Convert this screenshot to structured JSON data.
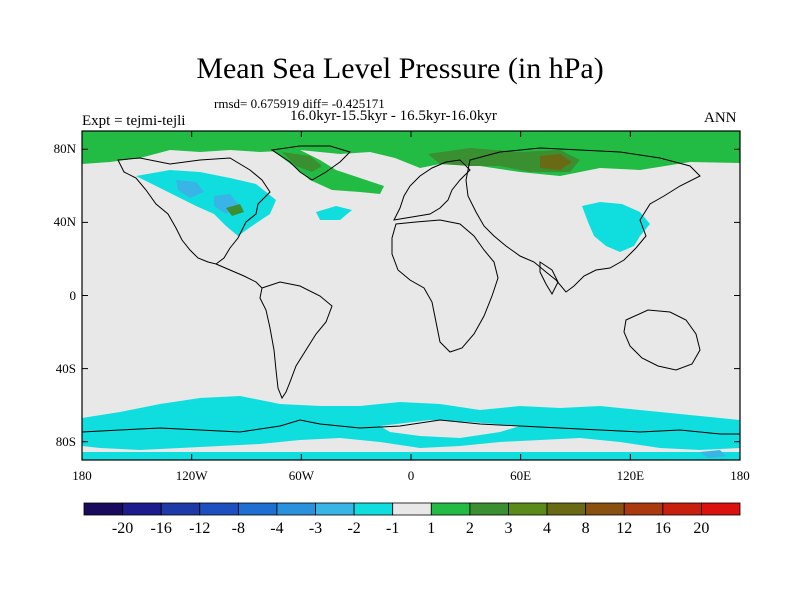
{
  "title": "Mean Sea Level Pressure (in hPa)",
  "stats": "rmsd= 0.675919 diff= -0.425171",
  "period": "16.0kyr-15.5kyr - 16.5kyr-16.0kyr",
  "experiment": "Expt = tejmi-tejli",
  "season": "ANN",
  "map": {
    "x_range": [
      -180,
      180
    ],
    "y_range": [
      -90,
      90
    ],
    "lat_ticks": [
      {
        "value": 80,
        "label": "80N"
      },
      {
        "value": 40,
        "label": "40N"
      },
      {
        "value": 0,
        "label": "0"
      },
      {
        "value": -40,
        "label": "40S"
      },
      {
        "value": -80,
        "label": "80S"
      }
    ],
    "lon_ticks": [
      {
        "value": -180,
        "label": "180"
      },
      {
        "value": -120,
        "label": "120W"
      },
      {
        "value": -60,
        "label": "60W"
      },
      {
        "value": 0,
        "label": "0"
      },
      {
        "value": 60,
        "label": "60E"
      },
      {
        "value": 120,
        "label": "120E"
      },
      {
        "value": 180,
        "label": "180"
      }
    ],
    "background_color": "#e8e8e8"
  },
  "colorbar": {
    "colors": [
      "#1a0a5e",
      "#1c1c8c",
      "#1e3aa8",
      "#1e4fc0",
      "#1f6ed2",
      "#2a92dc",
      "#38b4e6",
      "#10dede",
      "#e8e8e8",
      "#22bb44",
      "#3a8f30",
      "#5a8a1a",
      "#6a6a14",
      "#8a5010",
      "#aa3a0e",
      "#c8200c",
      "#dd1010"
    ],
    "labels": [
      "-20",
      "-16",
      "-12",
      "-8",
      "-4",
      "-3",
      "-2",
      "-1",
      "1",
      "2",
      "3",
      "4",
      "8",
      "12",
      "16",
      "20"
    ]
  }
}
